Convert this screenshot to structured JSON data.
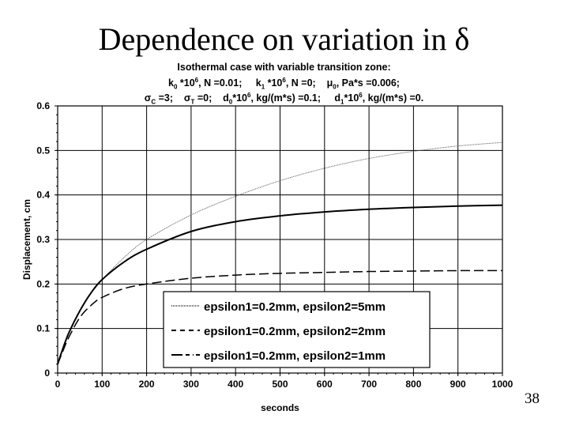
{
  "slide": {
    "title": "Dependence on variation in δ",
    "page_number": "38"
  },
  "subtitle_lines": [
    [
      {
        "t": "Isothermal case with variable transition zone:"
      }
    ],
    [
      {
        "t": "k"
      },
      {
        "t": "0",
        "s": "sub"
      },
      {
        "t": " *10"
      },
      {
        "t": "6",
        "s": "sup"
      },
      {
        "t": ", N =0.01;     k"
      },
      {
        "t": "1",
        "s": "sub"
      },
      {
        "t": " *10"
      },
      {
        "t": "6",
        "s": "sup"
      },
      {
        "t": ", N =0;    μ"
      },
      {
        "t": "0",
        "s": "sub"
      },
      {
        "t": ", Pa*s =0.006;"
      }
    ],
    [
      {
        "t": "σ"
      },
      {
        "t": "C",
        "s": "sub"
      },
      {
        "t": " =3;    σ"
      },
      {
        "t": "T",
        "s": "sub"
      },
      {
        "t": " =0;    d"
      },
      {
        "t": "0",
        "s": "sub"
      },
      {
        "t": "*10"
      },
      {
        "t": "6",
        "s": "sup"
      },
      {
        "t": ", kg/(m*s) =0.1;     d"
      },
      {
        "t": "1",
        "s": "sub"
      },
      {
        "t": "*10"
      },
      {
        "t": "6",
        "s": "sup"
      },
      {
        "t": ", kg/(m*s) =0."
      }
    ]
  ],
  "chart_data": {
    "type": "line",
    "xlabel": "seconds",
    "ylabel": "Displacement, cm",
    "xlim": [
      0,
      1000
    ],
    "ylim": [
      0,
      0.6
    ],
    "xticks": [
      0,
      100,
      200,
      300,
      400,
      500,
      600,
      700,
      800,
      900,
      1000
    ],
    "yticks": [
      0,
      0.1,
      0.2,
      0.3,
      0.4,
      0.5,
      0.6
    ],
    "grid": true,
    "legend_position": "bottom-center",
    "series": [
      {
        "name": "epsilon1=0.2mm, epsilon2=5mm",
        "style": "dotted",
        "x": [
          0,
          10,
          25,
          50,
          75,
          100,
          150,
          200,
          300,
          400,
          500,
          600,
          700,
          800,
          900,
          1000
        ],
        "y": [
          0.02,
          0.05,
          0.09,
          0.14,
          0.18,
          0.21,
          0.26,
          0.3,
          0.355,
          0.397,
          0.432,
          0.46,
          0.482,
          0.498,
          0.51,
          0.518
        ]
      },
      {
        "name": "epsilon1=0.2mm, epsilon2=2mm",
        "style": "solid",
        "x": [
          0,
          10,
          25,
          50,
          75,
          100,
          150,
          200,
          300,
          400,
          500,
          600,
          700,
          800,
          900,
          1000
        ],
        "y": [
          0.02,
          0.05,
          0.09,
          0.14,
          0.18,
          0.21,
          0.25,
          0.278,
          0.318,
          0.34,
          0.353,
          0.362,
          0.368,
          0.372,
          0.375,
          0.377
        ]
      },
      {
        "name": "epsilon1=0.2mm, epsilon2=1mm",
        "style": "longdash",
        "x": [
          0,
          10,
          25,
          50,
          75,
          100,
          150,
          200,
          300,
          400,
          500,
          600,
          700,
          800,
          900,
          1000
        ],
        "y": [
          0.02,
          0.045,
          0.08,
          0.125,
          0.152,
          0.17,
          0.19,
          0.2,
          0.213,
          0.22,
          0.224,
          0.226,
          0.228,
          0.229,
          0.23,
          0.23
        ]
      }
    ]
  }
}
